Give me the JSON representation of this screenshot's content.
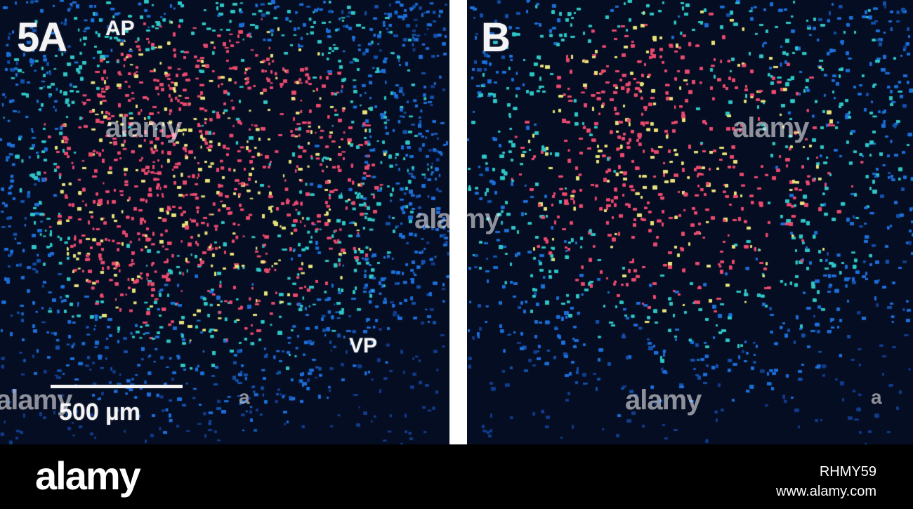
{
  "panel_a": {
    "figure_label": "5A",
    "top_label": "AP",
    "bottom_label": "VP",
    "scale_label": "500 µm"
  },
  "panel_b": {
    "figure_label": "B"
  },
  "watermark": {
    "text": "alamy",
    "mark": "a"
  },
  "footer": {
    "logo": "alamy",
    "image_id": "RHMY59",
    "url": "www.alamy.com"
  },
  "colors": {
    "background": "#050d22",
    "low": "#1d6fd8",
    "mid": "#2fc6c6",
    "high": "#e94a6e",
    "peak": "#e8e27a"
  }
}
